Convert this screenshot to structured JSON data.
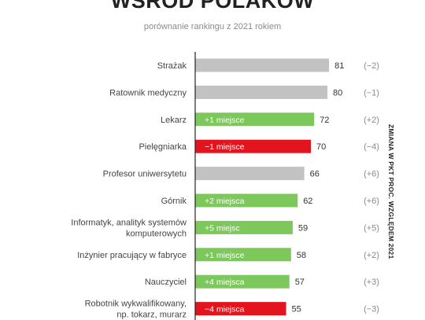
{
  "header": {
    "title": "WŚRÓD POLAKÓW",
    "subtitle": "porównanie rankingu z 2021 rokiem"
  },
  "side_label": "ZMIANA W PKT PROC. WZGLĘDEM 2021",
  "colors": {
    "grey": "#c2c2c2",
    "green": "#7cc85a",
    "red": "#e3141e",
    "axis": "#222222"
  },
  "chart_data": {
    "type": "bar",
    "orientation": "horizontal",
    "title": "WŚRÓD POLAKÓW",
    "subtitle": "porównanie rankingu z 2021 rokiem",
    "xlim": [
      0,
      100
    ],
    "grid": false,
    "legend": "none",
    "categories": [
      [
        "Strażak"
      ],
      [
        "Ratownik medyczny"
      ],
      [
        "Lekarz"
      ],
      [
        "Pielęgniarka"
      ],
      [
        "Profesor uniwersytetu"
      ],
      [
        "Górnik"
      ],
      [
        "Informatyk, analityk systemów",
        "komputerowych"
      ],
      [
        "Inżynier pracujący w fabryce"
      ],
      [
        "Nauczyciel"
      ],
      [
        "Robotnik wykwalifikowany,",
        "np. tokarz, murarz"
      ]
    ],
    "values": [
      81,
      80,
      72,
      70,
      66,
      62,
      59,
      58,
      57,
      55
    ],
    "rank_change_labels": [
      "",
      "",
      "+1 miejsce",
      "−1 miejsce",
      "",
      "+2 miejsca",
      "+5 miejsc",
      "+1 miejsce",
      "+4 miejsca",
      "−4 miejsca"
    ],
    "bar_status": [
      "same",
      "same",
      "up",
      "down",
      "same",
      "up",
      "up",
      "up",
      "up",
      "down"
    ],
    "change_vs_2021": [
      "(−2)",
      "(−1)",
      "(+2)",
      "(−4)",
      "(+6)",
      "(+6)",
      "(+5)",
      "(+2)",
      "(+3)",
      "(−3)"
    ]
  }
}
